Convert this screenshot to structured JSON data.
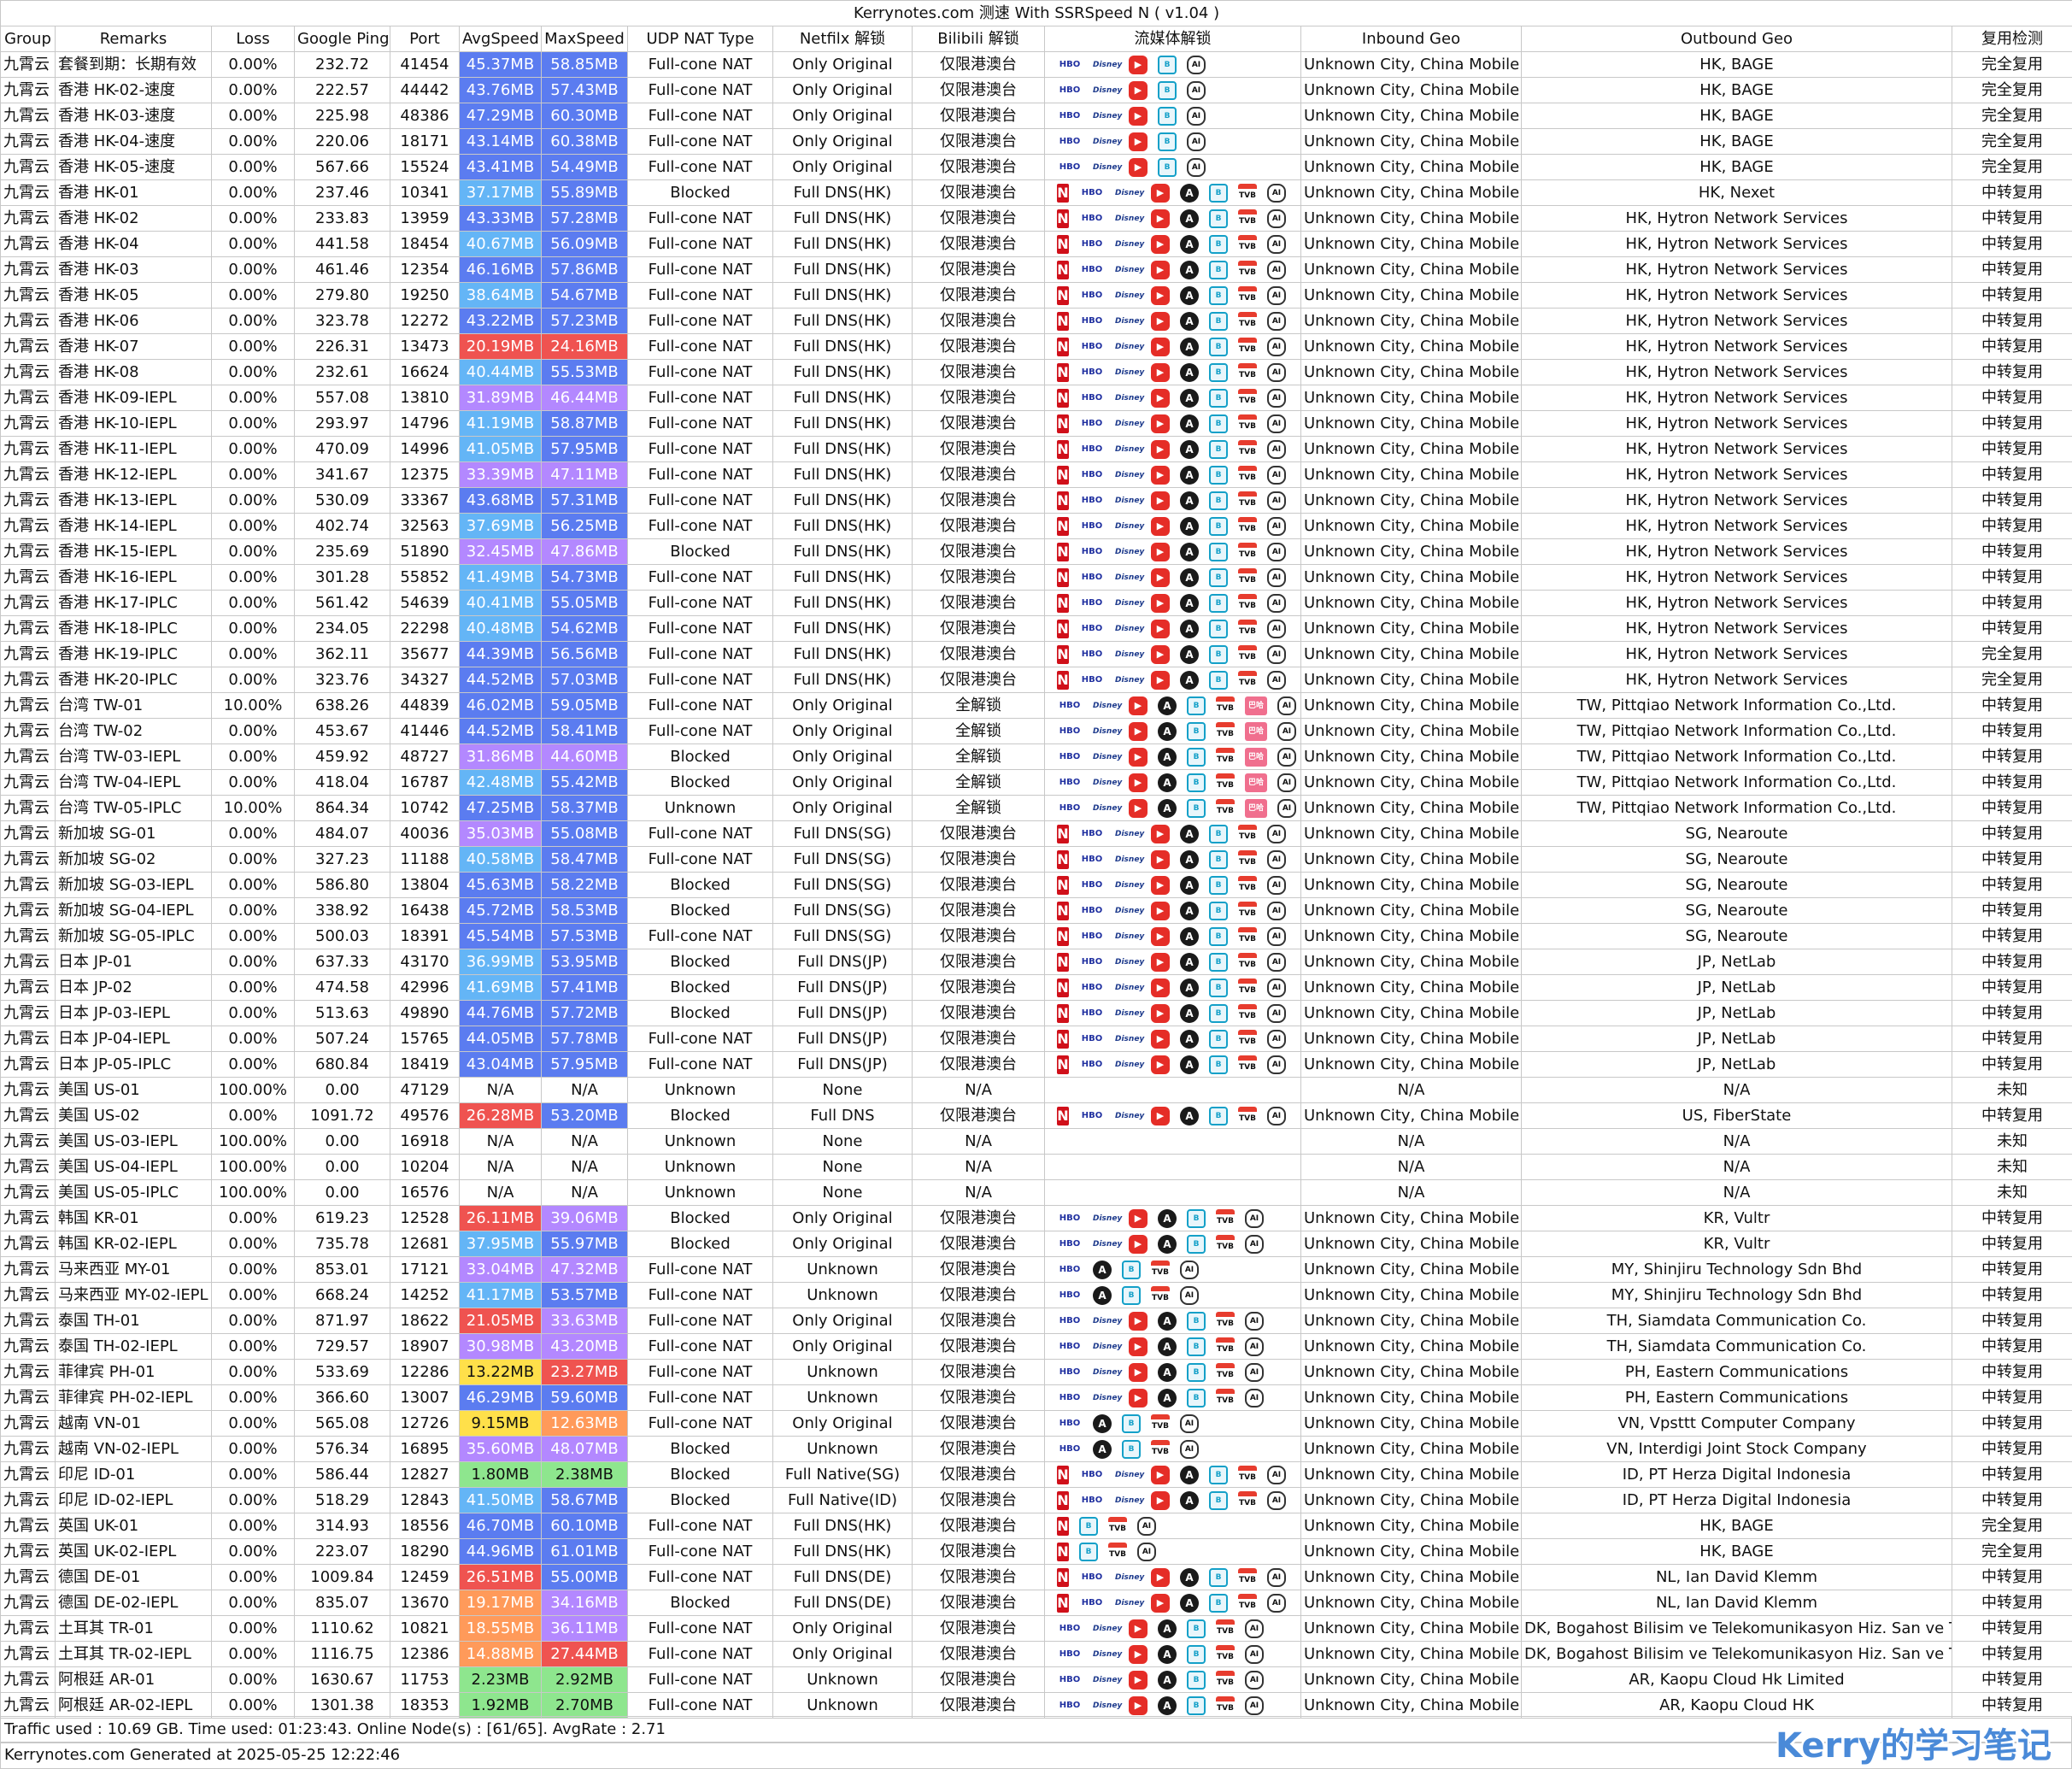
{
  "title": "Kerrynotes.com 测速 With SSRSpeed N ( v1.04 )",
  "headers": [
    "Group",
    "Remarks",
    "Loss",
    "Google Ping",
    "Port",
    "AvgSpeed",
    "MaxSpeed",
    "UDP NAT Type",
    "Netfilx 解锁",
    "Bilibili 解锁",
    "流媒体解锁",
    "Inbound Geo",
    "Outbound Geo",
    "复用检测"
  ],
  "icon_names": {
    "N": "netflix-icon",
    "H": "hbo-icon",
    "D": "disney-icon",
    "Y": "youtube-icon",
    "A": "abema-icon",
    "B": "bilibili-icon",
    "T": "tvb-icon",
    "G": "chatgpt-icon",
    "P": "bahamut-icon"
  },
  "icon_labels": {
    "N": "N",
    "H": "HBO",
    "D": "Disney",
    "Y": "▶",
    "A": "A",
    "B": "B",
    "T": "TVB",
    "G": "AI",
    "P": "巴哈"
  },
  "rows": [
    [
      "九霄云",
      "套餐到期：长期有效",
      "0.00%",
      "232.72",
      "41454",
      "45.37MB",
      "58.85MB",
      "Full-cone NAT",
      "Only Original",
      "仅限港澳台",
      "HDYBG",
      "Unknown City, China Mobile",
      "HK, BAGE",
      "完全复用"
    ],
    [
      "九霄云",
      "香港 HK-02-速度",
      "0.00%",
      "222.57",
      "44442",
      "43.76MB",
      "57.43MB",
      "Full-cone NAT",
      "Only Original",
      "仅限港澳台",
      "HDYBG",
      "Unknown City, China Mobile",
      "HK, BAGE",
      "完全复用"
    ],
    [
      "九霄云",
      "香港 HK-03-速度",
      "0.00%",
      "225.98",
      "48386",
      "47.29MB",
      "60.30MB",
      "Full-cone NAT",
      "Only Original",
      "仅限港澳台",
      "HDYBG",
      "Unknown City, China Mobile",
      "HK, BAGE",
      "完全复用"
    ],
    [
      "九霄云",
      "香港 HK-04-速度",
      "0.00%",
      "220.06",
      "18171",
      "43.14MB",
      "60.38MB",
      "Full-cone NAT",
      "Only Original",
      "仅限港澳台",
      "HDYBG",
      "Unknown City, China Mobile",
      "HK, BAGE",
      "完全复用"
    ],
    [
      "九霄云",
      "香港 HK-05-速度",
      "0.00%",
      "567.66",
      "15524",
      "43.41MB",
      "54.49MB",
      "Full-cone NAT",
      "Only Original",
      "仅限港澳台",
      "HDYBG",
      "Unknown City, China Mobile",
      "HK, BAGE",
      "完全复用"
    ],
    [
      "九霄云",
      "香港 HK-01",
      "0.00%",
      "237.46",
      "10341",
      "37.17MB",
      "55.89MB",
      "Blocked",
      "Full DNS(HK)",
      "仅限港澳台",
      "NHDYABTG",
      "Unknown City, China Mobile",
      "HK, Nexet",
      "中转复用"
    ],
    [
      "九霄云",
      "香港 HK-02",
      "0.00%",
      "233.83",
      "13959",
      "43.33MB",
      "57.28MB",
      "Full-cone NAT",
      "Full DNS(HK)",
      "仅限港澳台",
      "NHDYABTG",
      "Unknown City, China Mobile",
      "HK, Hytron Network Services",
      "中转复用"
    ],
    [
      "九霄云",
      "香港 HK-04",
      "0.00%",
      "441.58",
      "18454",
      "40.67MB",
      "56.09MB",
      "Full-cone NAT",
      "Full DNS(HK)",
      "仅限港澳台",
      "NHDYABTG",
      "Unknown City, China Mobile",
      "HK, Hytron Network Services",
      "中转复用"
    ],
    [
      "九霄云",
      "香港 HK-03",
      "0.00%",
      "461.46",
      "12354",
      "46.16MB",
      "57.86MB",
      "Full-cone NAT",
      "Full DNS(HK)",
      "仅限港澳台",
      "NHDYABTG",
      "Unknown City, China Mobile",
      "HK, Hytron Network Services",
      "中转复用"
    ],
    [
      "九霄云",
      "香港 HK-05",
      "0.00%",
      "279.80",
      "19250",
      "38.64MB",
      "54.67MB",
      "Full-cone NAT",
      "Full DNS(HK)",
      "仅限港澳台",
      "NHDYABTG",
      "Unknown City, China Mobile",
      "HK, Hytron Network Services",
      "中转复用"
    ],
    [
      "九霄云",
      "香港 HK-06",
      "0.00%",
      "323.78",
      "12272",
      "43.22MB",
      "57.23MB",
      "Full-cone NAT",
      "Full DNS(HK)",
      "仅限港澳台",
      "NHDYABTG",
      "Unknown City, China Mobile",
      "HK, Hytron Network Services",
      "中转复用"
    ],
    [
      "九霄云",
      "香港 HK-07",
      "0.00%",
      "226.31",
      "13473",
      "20.19MB",
      "24.16MB",
      "Full-cone NAT",
      "Full DNS(HK)",
      "仅限港澳台",
      "NHDYABTG",
      "Unknown City, China Mobile",
      "HK, Hytron Network Services",
      "中转复用"
    ],
    [
      "九霄云",
      "香港 HK-08",
      "0.00%",
      "232.61",
      "16624",
      "40.44MB",
      "55.53MB",
      "Full-cone NAT",
      "Full DNS(HK)",
      "仅限港澳台",
      "NHDYABTG",
      "Unknown City, China Mobile",
      "HK, Hytron Network Services",
      "中转复用"
    ],
    [
      "九霄云",
      "香港 HK-09-IEPL",
      "0.00%",
      "557.08",
      "13810",
      "31.89MB",
      "46.44MB",
      "Full-cone NAT",
      "Full DNS(HK)",
      "仅限港澳台",
      "NHDYABTG",
      "Unknown City, China Mobile",
      "HK, Hytron Network Services",
      "中转复用"
    ],
    [
      "九霄云",
      "香港 HK-10-IEPL",
      "0.00%",
      "293.97",
      "14796",
      "41.19MB",
      "58.87MB",
      "Full-cone NAT",
      "Full DNS(HK)",
      "仅限港澳台",
      "NHDYABTG",
      "Unknown City, China Mobile",
      "HK, Hytron Network Services",
      "中转复用"
    ],
    [
      "九霄云",
      "香港 HK-11-IEPL",
      "0.00%",
      "470.09",
      "14996",
      "41.05MB",
      "57.95MB",
      "Full-cone NAT",
      "Full DNS(HK)",
      "仅限港澳台",
      "NHDYABTG",
      "Unknown City, China Mobile",
      "HK, Hytron Network Services",
      "中转复用"
    ],
    [
      "九霄云",
      "香港 HK-12-IEPL",
      "0.00%",
      "341.67",
      "12375",
      "33.39MB",
      "47.11MB",
      "Full-cone NAT",
      "Full DNS(HK)",
      "仅限港澳台",
      "NHDYABTG",
      "Unknown City, China Mobile",
      "HK, Hytron Network Services",
      "中转复用"
    ],
    [
      "九霄云",
      "香港 HK-13-IEPL",
      "0.00%",
      "530.09",
      "33367",
      "43.68MB",
      "57.31MB",
      "Full-cone NAT",
      "Full DNS(HK)",
      "仅限港澳台",
      "NHDYABTG",
      "Unknown City, China Mobile",
      "HK, Hytron Network Services",
      "中转复用"
    ],
    [
      "九霄云",
      "香港 HK-14-IEPL",
      "0.00%",
      "402.74",
      "32563",
      "37.69MB",
      "56.25MB",
      "Full-cone NAT",
      "Full DNS(HK)",
      "仅限港澳台",
      "NHDYABTG",
      "Unknown City, China Mobile",
      "HK, Hytron Network Services",
      "中转复用"
    ],
    [
      "九霄云",
      "香港 HK-15-IEPL",
      "0.00%",
      "235.69",
      "51890",
      "32.45MB",
      "47.86MB",
      "Blocked",
      "Full DNS(HK)",
      "仅限港澳台",
      "NHDYABTG",
      "Unknown City, China Mobile",
      "HK, Hytron Network Services",
      "中转复用"
    ],
    [
      "九霄云",
      "香港 HK-16-IEPL",
      "0.00%",
      "301.28",
      "55852",
      "41.49MB",
      "54.73MB",
      "Full-cone NAT",
      "Full DNS(HK)",
      "仅限港澳台",
      "NHDYABTG",
      "Unknown City, China Mobile",
      "HK, Hytron Network Services",
      "中转复用"
    ],
    [
      "九霄云",
      "香港 HK-17-IPLC",
      "0.00%",
      "561.42",
      "54639",
      "40.41MB",
      "55.05MB",
      "Full-cone NAT",
      "Full DNS(HK)",
      "仅限港澳台",
      "NHDYABTG",
      "Unknown City, China Mobile",
      "HK, Hytron Network Services",
      "中转复用"
    ],
    [
      "九霄云",
      "香港 HK-18-IPLC",
      "0.00%",
      "234.05",
      "22298",
      "40.48MB",
      "54.62MB",
      "Full-cone NAT",
      "Full DNS(HK)",
      "仅限港澳台",
      "NHDYABTG",
      "Unknown City, China Mobile",
      "HK, Hytron Network Services",
      "中转复用"
    ],
    [
      "九霄云",
      "香港 HK-19-IPLC",
      "0.00%",
      "362.11",
      "35677",
      "44.39MB",
      "56.56MB",
      "Full-cone NAT",
      "Full DNS(HK)",
      "仅限港澳台",
      "NHDYABTG",
      "Unknown City, China Mobile",
      "HK, Hytron Network Services",
      "完全复用"
    ],
    [
      "九霄云",
      "香港 HK-20-IPLC",
      "0.00%",
      "323.76",
      "34327",
      "44.52MB",
      "57.03MB",
      "Full-cone NAT",
      "Full DNS(HK)",
      "仅限港澳台",
      "NHDYABTG",
      "Unknown City, China Mobile",
      "HK, Hytron Network Services",
      "完全复用"
    ],
    [
      "九霄云",
      "台湾 TW-01",
      "10.00%",
      "638.26",
      "44839",
      "46.02MB",
      "59.05MB",
      "Full-cone NAT",
      "Only Original",
      "全解锁",
      "HDYABTPG",
      "Unknown City, China Mobile",
      "TW, Pittqiao Network Information Co.,Ltd.",
      "中转复用"
    ],
    [
      "九霄云",
      "台湾 TW-02",
      "0.00%",
      "453.67",
      "41446",
      "44.52MB",
      "58.41MB",
      "Full-cone NAT",
      "Only Original",
      "全解锁",
      "HDYABTPG",
      "Unknown City, China Mobile",
      "TW, Pittqiao Network Information Co.,Ltd.",
      "中转复用"
    ],
    [
      "九霄云",
      "台湾 TW-03-IEPL",
      "0.00%",
      "459.92",
      "48727",
      "31.86MB",
      "44.60MB",
      "Blocked",
      "Only Original",
      "全解锁",
      "HDYABTPG",
      "Unknown City, China Mobile",
      "TW, Pittqiao Network Information Co.,Ltd.",
      "中转复用"
    ],
    [
      "九霄云",
      "台湾 TW-04-IEPL",
      "0.00%",
      "418.04",
      "16787",
      "42.48MB",
      "55.42MB",
      "Blocked",
      "Only Original",
      "全解锁",
      "HDYABTPG",
      "Unknown City, China Mobile",
      "TW, Pittqiao Network Information Co.,Ltd.",
      "中转复用"
    ],
    [
      "九霄云",
      "台湾 TW-05-IPLC",
      "10.00%",
      "864.34",
      "10742",
      "47.25MB",
      "58.37MB",
      "Unknown",
      "Only Original",
      "全解锁",
      "HDYABTPG",
      "Unknown City, China Mobile",
      "TW, Pittqiao Network Information Co.,Ltd.",
      "中转复用"
    ],
    [
      "九霄云",
      "新加坡 SG-01",
      "0.00%",
      "484.07",
      "40036",
      "35.03MB",
      "55.08MB",
      "Full-cone NAT",
      "Full DNS(SG)",
      "仅限港澳台",
      "NHDYABTG",
      "Unknown City, China Mobile",
      "SG, Nearoute",
      "中转复用"
    ],
    [
      "九霄云",
      "新加坡 SG-02",
      "0.00%",
      "327.23",
      "11188",
      "40.58MB",
      "58.47MB",
      "Full-cone NAT",
      "Full DNS(SG)",
      "仅限港澳台",
      "NHDYABTG",
      "Unknown City, China Mobile",
      "SG, Nearoute",
      "中转复用"
    ],
    [
      "九霄云",
      "新加坡 SG-03-IEPL",
      "0.00%",
      "586.80",
      "13804",
      "45.63MB",
      "58.22MB",
      "Blocked",
      "Full DNS(SG)",
      "仅限港澳台",
      "NHDYABTG",
      "Unknown City, China Mobile",
      "SG, Nearoute",
      "中转复用"
    ],
    [
      "九霄云",
      "新加坡 SG-04-IEPL",
      "0.00%",
      "338.92",
      "16438",
      "45.72MB",
      "58.53MB",
      "Blocked",
      "Full DNS(SG)",
      "仅限港澳台",
      "NHDYABTG",
      "Unknown City, China Mobile",
      "SG, Nearoute",
      "中转复用"
    ],
    [
      "九霄云",
      "新加坡 SG-05-IPLC",
      "0.00%",
      "500.03",
      "18391",
      "45.54MB",
      "57.53MB",
      "Full-cone NAT",
      "Full DNS(SG)",
      "仅限港澳台",
      "NHDYABTG",
      "Unknown City, China Mobile",
      "SG, Nearoute",
      "中转复用"
    ],
    [
      "九霄云",
      "日本 JP-01",
      "0.00%",
      "637.33",
      "43170",
      "36.99MB",
      "53.95MB",
      "Blocked",
      "Full DNS(JP)",
      "仅限港澳台",
      "NHDYABTG",
      "Unknown City, China Mobile",
      "JP, NetLab",
      "中转复用"
    ],
    [
      "九霄云",
      "日本 JP-02",
      "0.00%",
      "474.58",
      "42996",
      "41.69MB",
      "57.41MB",
      "Blocked",
      "Full DNS(JP)",
      "仅限港澳台",
      "NHDYABTG",
      "Unknown City, China Mobile",
      "JP, NetLab",
      "中转复用"
    ],
    [
      "九霄云",
      "日本 JP-03-IEPL",
      "0.00%",
      "513.63",
      "49890",
      "44.76MB",
      "57.72MB",
      "Blocked",
      "Full DNS(JP)",
      "仅限港澳台",
      "NHDYABTG",
      "Unknown City, China Mobile",
      "JP, NetLab",
      "中转复用"
    ],
    [
      "九霄云",
      "日本 JP-04-IEPL",
      "0.00%",
      "507.24",
      "15765",
      "44.05MB",
      "57.78MB",
      "Full-cone NAT",
      "Full DNS(JP)",
      "仅限港澳台",
      "NHDYABTG",
      "Unknown City, China Mobile",
      "JP, NetLab",
      "中转复用"
    ],
    [
      "九霄云",
      "日本 JP-05-IPLC",
      "0.00%",
      "680.84",
      "18419",
      "43.04MB",
      "57.95MB",
      "Full-cone NAT",
      "Full DNS(JP)",
      "仅限港澳台",
      "NHDYABTG",
      "Unknown City, China Mobile",
      "JP, NetLab",
      "中转复用"
    ],
    [
      "九霄云",
      "美国 US-01",
      "100.00%",
      "0.00",
      "47129",
      "N/A",
      "N/A",
      "Unknown",
      "None",
      "N/A",
      "",
      "N/A",
      "N/A",
      "未知"
    ],
    [
      "九霄云",
      "美国 US-02",
      "0.00%",
      "1091.72",
      "49576",
      "26.28MB",
      "53.20MB",
      "Blocked",
      "Full DNS",
      "仅限港澳台",
      "NHDYABTG",
      "Unknown City, China Mobile",
      "US, FiberState",
      "中转复用"
    ],
    [
      "九霄云",
      "美国 US-03-IEPL",
      "100.00%",
      "0.00",
      "16918",
      "N/A",
      "N/A",
      "Unknown",
      "None",
      "N/A",
      "",
      "N/A",
      "N/A",
      "未知"
    ],
    [
      "九霄云",
      "美国 US-04-IEPL",
      "100.00%",
      "0.00",
      "10204",
      "N/A",
      "N/A",
      "Unknown",
      "None",
      "N/A",
      "",
      "N/A",
      "N/A",
      "未知"
    ],
    [
      "九霄云",
      "美国 US-05-IPLC",
      "100.00%",
      "0.00",
      "16576",
      "N/A",
      "N/A",
      "Unknown",
      "None",
      "N/A",
      "",
      "N/A",
      "N/A",
      "未知"
    ],
    [
      "九霄云",
      "韩国 KR-01",
      "0.00%",
      "619.23",
      "12528",
      "26.11MB",
      "39.06MB",
      "Blocked",
      "Only Original",
      "仅限港澳台",
      "HDYABTG",
      "Unknown City, China Mobile",
      "KR, Vultr",
      "中转复用"
    ],
    [
      "九霄云",
      "韩国 KR-02-IEPL",
      "0.00%",
      "735.78",
      "12681",
      "37.95MB",
      "55.97MB",
      "Blocked",
      "Only Original",
      "仅限港澳台",
      "HDYABTG",
      "Unknown City, China Mobile",
      "KR, Vultr",
      "中转复用"
    ],
    [
      "九霄云",
      "马来西亚 MY-01",
      "0.00%",
      "853.01",
      "17121",
      "33.04MB",
      "47.32MB",
      "Full-cone NAT",
      "Unknown",
      "仅限港澳台",
      "HABTG",
      "Unknown City, China Mobile",
      "MY, Shinjiru Technology Sdn Bhd",
      "中转复用"
    ],
    [
      "九霄云",
      "马来西亚 MY-02-IEPL",
      "0.00%",
      "668.24",
      "14252",
      "41.17MB",
      "53.57MB",
      "Full-cone NAT",
      "Unknown",
      "仅限港澳台",
      "HABTG",
      "Unknown City, China Mobile",
      "MY, Shinjiru Technology Sdn Bhd",
      "中转复用"
    ],
    [
      "九霄云",
      "泰国 TH-01",
      "0.00%",
      "871.97",
      "18622",
      "21.05MB",
      "33.63MB",
      "Full-cone NAT",
      "Only Original",
      "仅限港澳台",
      "HDYABTG",
      "Unknown City, China Mobile",
      "TH, Siamdata Communication Co.",
      "中转复用"
    ],
    [
      "九霄云",
      "泰国 TH-02-IEPL",
      "0.00%",
      "729.57",
      "18907",
      "30.98MB",
      "43.20MB",
      "Full-cone NAT",
      "Only Original",
      "仅限港澳台",
      "HDYABTG",
      "Unknown City, China Mobile",
      "TH, Siamdata Communication Co.",
      "中转复用"
    ],
    [
      "九霄云",
      "菲律宾 PH-01",
      "0.00%",
      "533.69",
      "12286",
      "13.22MB",
      "23.27MB",
      "Full-cone NAT",
      "Unknown",
      "仅限港澳台",
      "HDYABTG",
      "Unknown City, China Mobile",
      "PH, Eastern Communications",
      "中转复用"
    ],
    [
      "九霄云",
      "菲律宾 PH-02-IEPL",
      "0.00%",
      "366.60",
      "13007",
      "46.29MB",
      "59.60MB",
      "Full-cone NAT",
      "Unknown",
      "仅限港澳台",
      "HDYABTG",
      "Unknown City, China Mobile",
      "PH, Eastern Communications",
      "中转复用"
    ],
    [
      "九霄云",
      "越南 VN-01",
      "0.00%",
      "565.08",
      "12726",
      "9.15MB",
      "12.63MB",
      "Full-cone NAT",
      "Only Original",
      "仅限港澳台",
      "HABTG",
      "Unknown City, China Mobile",
      "VN, Vpsttt Computer Company",
      "中转复用"
    ],
    [
      "九霄云",
      "越南 VN-02-IEPL",
      "0.00%",
      "576.34",
      "16895",
      "35.60MB",
      "48.07MB",
      "Blocked",
      "Unknown",
      "仅限港澳台",
      "HABTG",
      "Unknown City, China Mobile",
      "VN, Interdigi Joint Stock Company",
      "中转复用"
    ],
    [
      "九霄云",
      "印尼 ID-01",
      "0.00%",
      "586.44",
      "12827",
      "1.80MB",
      "2.38MB",
      "Blocked",
      "Full Native(SG)",
      "仅限港澳台",
      "NHDYABTG",
      "Unknown City, China Mobile",
      "ID, PT Herza Digital Indonesia",
      "中转复用"
    ],
    [
      "九霄云",
      "印尼 ID-02-IEPL",
      "0.00%",
      "518.29",
      "12843",
      "41.50MB",
      "58.67MB",
      "Blocked",
      "Full Native(ID)",
      "仅限港澳台",
      "NHDYABTG",
      "Unknown City, China Mobile",
      "ID, PT Herza Digital Indonesia",
      "中转复用"
    ],
    [
      "九霄云",
      "英国 UK-01",
      "0.00%",
      "314.93",
      "18556",
      "46.70MB",
      "60.10MB",
      "Full-cone NAT",
      "Full DNS(HK)",
      "仅限港澳台",
      "NBTG",
      "Unknown City, China Mobile",
      "HK, BAGE",
      "完全复用"
    ],
    [
      "九霄云",
      "英国 UK-02-IEPL",
      "0.00%",
      "223.07",
      "18290",
      "44.96MB",
      "61.01MB",
      "Full-cone NAT",
      "Full DNS(HK)",
      "仅限港澳台",
      "NBTG",
      "Unknown City, China Mobile",
      "HK, BAGE",
      "完全复用"
    ],
    [
      "九霄云",
      "德国 DE-01",
      "0.00%",
      "1009.84",
      "12459",
      "26.51MB",
      "55.00MB",
      "Full-cone NAT",
      "Full DNS(DE)",
      "仅限港澳台",
      "NHDYABTG",
      "Unknown City, China Mobile",
      "NL, Ian David Klemm",
      "中转复用"
    ],
    [
      "九霄云",
      "德国 DE-02-IEPL",
      "0.00%",
      "835.07",
      "13670",
      "19.17MB",
      "34.16MB",
      "Blocked",
      "Full DNS(DE)",
      "仅限港澳台",
      "NHDYABTG",
      "Unknown City, China Mobile",
      "NL, Ian David Klemm",
      "中转复用"
    ],
    [
      "九霄云",
      "土耳其 TR-01",
      "0.00%",
      "1110.62",
      "10821",
      "18.55MB",
      "36.11MB",
      "Full-cone NAT",
      "Only Original",
      "仅限港澳台",
      "HDYABTG",
      "Unknown City, China Mobile",
      "DK, Bogahost Bilisim ve Telekomunikasyon Hiz. San ve T",
      "中转复用"
    ],
    [
      "九霄云",
      "土耳其 TR-02-IEPL",
      "0.00%",
      "1116.75",
      "12386",
      "14.88MB",
      "27.44MB",
      "Full-cone NAT",
      "Only Original",
      "仅限港澳台",
      "HDYABTG",
      "Unknown City, China Mobile",
      "DK, Bogahost Bilisim ve Telekomunikasyon Hiz. San ve T",
      "中转复用"
    ],
    [
      "九霄云",
      "阿根廷 AR-01",
      "0.00%",
      "1630.67",
      "11753",
      "2.23MB",
      "2.92MB",
      "Full-cone NAT",
      "Unknown",
      "仅限港澳台",
      "HDYABTG",
      "Unknown City, China Mobile",
      "AR, Kaopu Cloud Hk Limited",
      "中转复用"
    ],
    [
      "九霄云",
      "阿根廷 AR-02-IEPL",
      "0.00%",
      "1301.38",
      "18353",
      "1.92MB",
      "2.70MB",
      "Full-cone NAT",
      "Unknown",
      "仅限港澳台",
      "HDYABTG",
      "Unknown City, China Mobile",
      "AR, Kaopu Cloud HK",
      "中转复用"
    ]
  ],
  "footer_line1": "Traffic used : 10.69 GB. Time used: 01:23:43. Online Node(s) : [61/65]. AvgRate : 2.71",
  "footer_line2": "Kerrynotes.com Generated at 2025-05-25 12:22:46",
  "watermark": "Kerry的学习笔记",
  "colors": {
    "speed_high": "#5b7cf0",
    "speed_mid": "#64b5f6",
    "speed_low_purple": "#b388ff",
    "speed_orange": "#ff9a5a",
    "speed_red": "#ef5350",
    "speed_yellow": "#ffe04a",
    "speed_green": "#8ee68e",
    "border": "#c8c8c8"
  }
}
